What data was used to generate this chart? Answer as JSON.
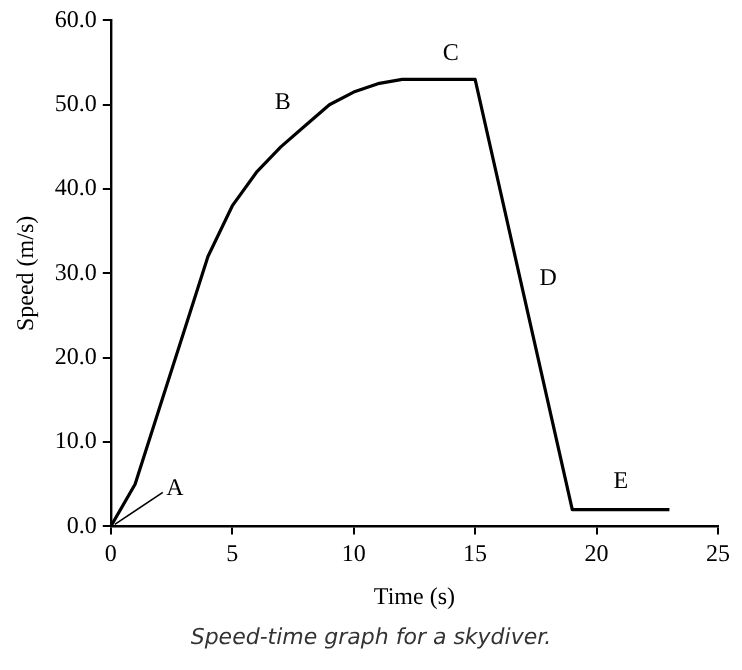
{
  "chart_data": {
    "type": "line",
    "xlabel": "Time (s)",
    "ylabel": "Speed (m/s)",
    "x": [
      0,
      1,
      2,
      3,
      4,
      5,
      6,
      7,
      8,
      9,
      10,
      11,
      12,
      15,
      19,
      23
    ],
    "series": [
      {
        "color": "#000000",
        "values": [
          0,
          5,
          14,
          23,
          32,
          38,
          42,
          45,
          47.5,
          50,
          51.5,
          52.5,
          53,
          53,
          2,
          2
        ]
      }
    ],
    "xlim": [
      0,
      25
    ],
    "xticks": [
      0,
      5,
      10,
      15,
      20,
      25
    ],
    "ylim": [
      0,
      60
    ],
    "yticks": [
      {
        "value": 0,
        "label": "0.0"
      },
      {
        "value": 10,
        "label": "10.0"
      },
      {
        "value": 20,
        "label": "20.0"
      },
      {
        "value": 30,
        "label": "30.0"
      },
      {
        "value": 40,
        "label": "40.0"
      },
      {
        "value": 50,
        "label": "50.0"
      },
      {
        "value": 60,
        "label": "60.0"
      }
    ],
    "annotations": [
      {
        "text": "A",
        "x": 0,
        "y": 0
      },
      {
        "text": "B",
        "x": 7,
        "y": 45
      },
      {
        "text": "C",
        "x": 14,
        "y": 53
      },
      {
        "text": "D",
        "x": 16.85,
        "y": 29.4
      },
      {
        "text": "E",
        "x": 21,
        "y": 2
      },
      "Speed-time graph for a skydiver."
    ],
    "grid": false,
    "legend": false,
    "marker": "none",
    "line_style": "solid"
  }
}
